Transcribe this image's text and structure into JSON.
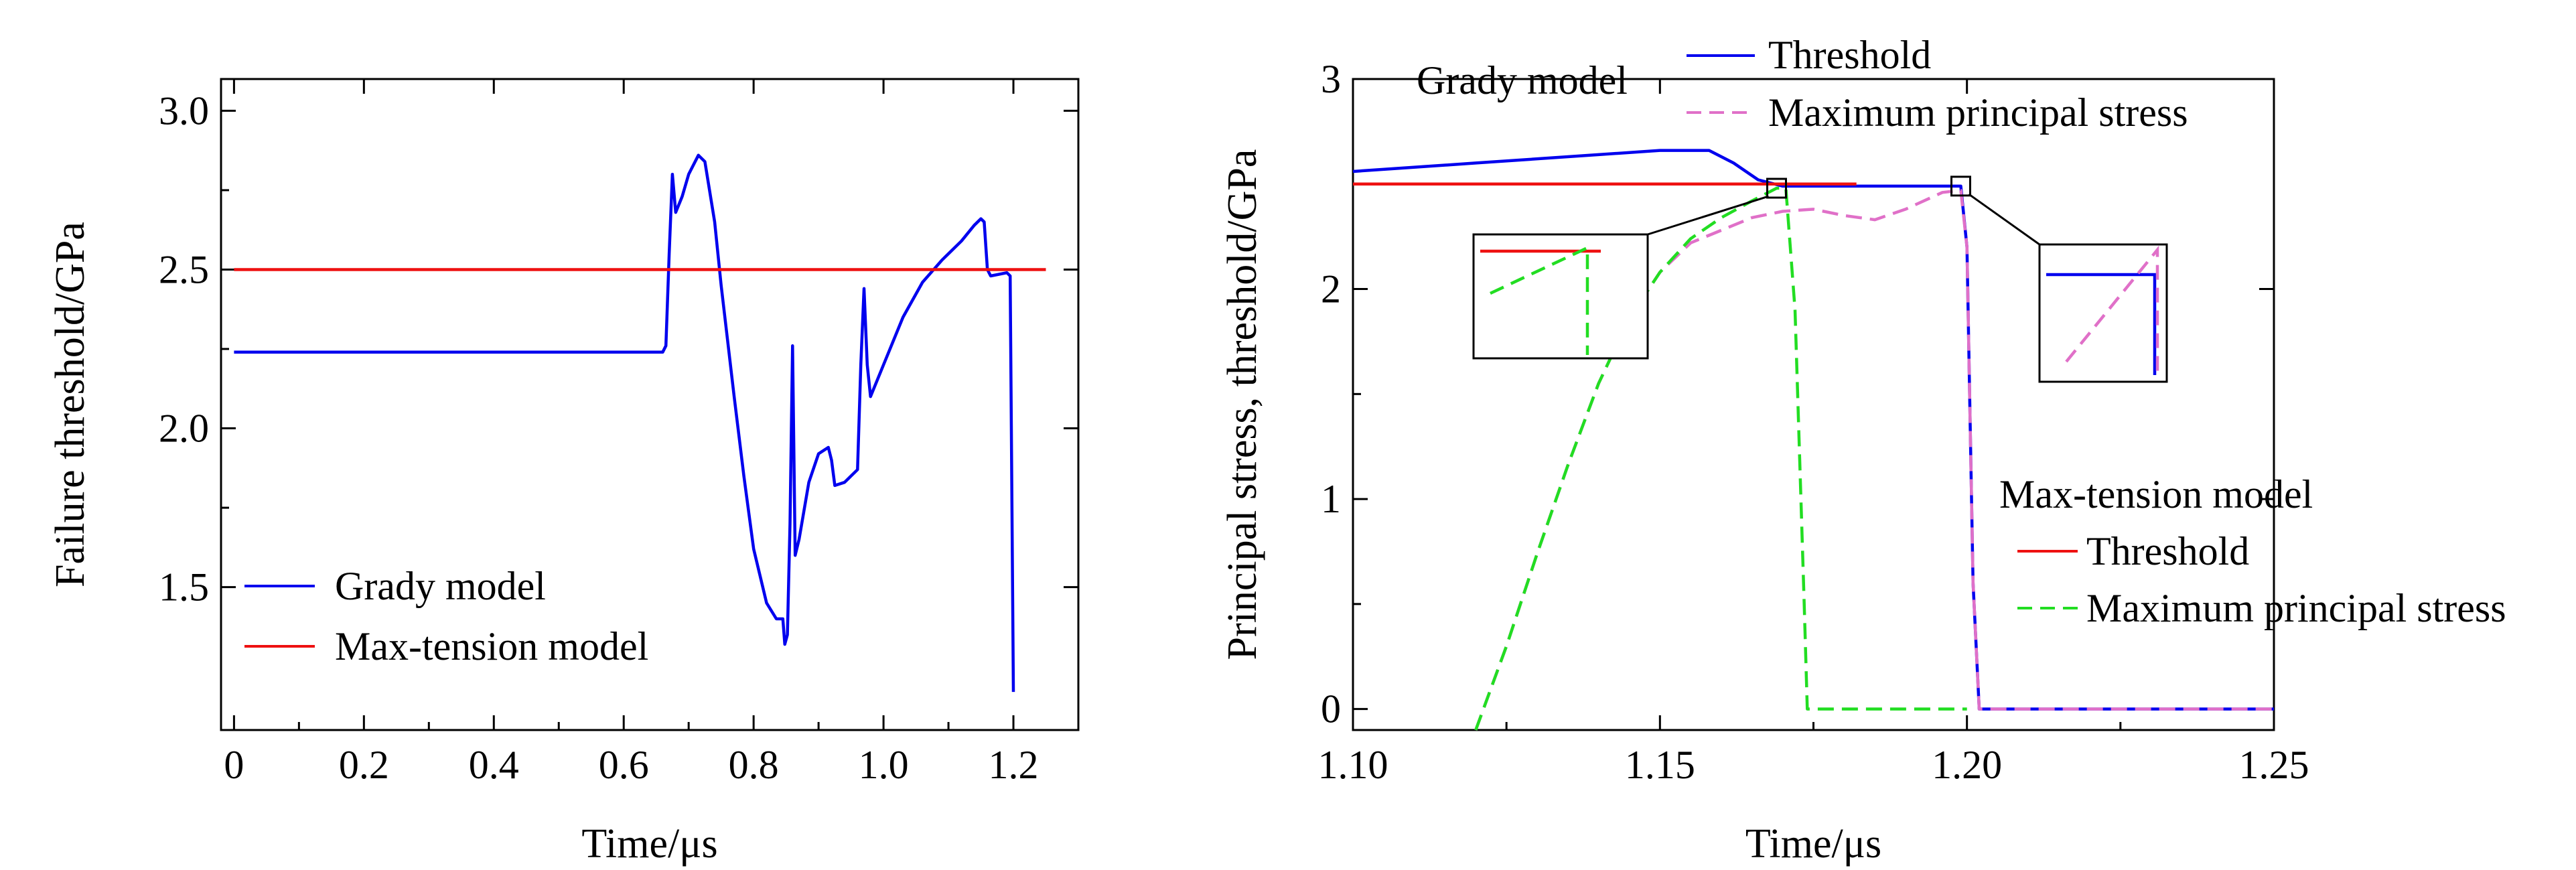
{
  "chart_data": [
    {
      "type": "line",
      "xlabel": "Time/μs",
      "ylabel": "Failure threshold/GPa",
      "xlim": [
        -0.02,
        1.3
      ],
      "ylim": [
        1.05,
        3.1
      ],
      "xticks": [
        0,
        0.2,
        0.4,
        0.6,
        0.8,
        1.0,
        1.2
      ],
      "xtick_labels": [
        "0",
        "0.2",
        "0.4",
        "0.6",
        "0.8",
        "1.0",
        "1.2"
      ],
      "yticks": [
        1.5,
        2.0,
        2.5,
        3.0
      ],
      "ytick_labels": [
        "1.5",
        "2.0",
        "2.5",
        "3.0"
      ],
      "legend_position": "bottom-left",
      "series": [
        {
          "name": "Grady model",
          "color": "#0000ee",
          "style": "solid",
          "points": [
            [
              0,
              2.24
            ],
            [
              0.66,
              2.24
            ],
            [
              0.665,
              2.26
            ],
            [
              0.67,
              2.55
            ],
            [
              0.675,
              2.8
            ],
            [
              0.68,
              2.68
            ],
            [
              0.69,
              2.73
            ],
            [
              0.7,
              2.8
            ],
            [
              0.715,
              2.86
            ],
            [
              0.725,
              2.84
            ],
            [
              0.74,
              2.65
            ],
            [
              0.75,
              2.45
            ],
            [
              0.77,
              2.1
            ],
            [
              0.785,
              1.85
            ],
            [
              0.8,
              1.62
            ],
            [
              0.82,
              1.45
            ],
            [
              0.835,
              1.4
            ],
            [
              0.845,
              1.4
            ],
            [
              0.848,
              1.32
            ],
            [
              0.852,
              1.35
            ],
            [
              0.856,
              1.7
            ],
            [
              0.86,
              2.26
            ],
            [
              0.864,
              1.6
            ],
            [
              0.87,
              1.65
            ],
            [
              0.885,
              1.83
            ],
            [
              0.9,
              1.92
            ],
            [
              0.915,
              1.94
            ],
            [
              0.92,
              1.9
            ],
            [
              0.925,
              1.82
            ],
            [
              0.94,
              1.83
            ],
            [
              0.96,
              1.87
            ],
            [
              0.965,
              2.2
            ],
            [
              0.97,
              2.44
            ],
            [
              0.975,
              2.2
            ],
            [
              0.98,
              2.1
            ],
            [
              1.0,
              2.2
            ],
            [
              1.03,
              2.35
            ],
            [
              1.06,
              2.46
            ],
            [
              1.09,
              2.53
            ],
            [
              1.12,
              2.59
            ],
            [
              1.14,
              2.64
            ],
            [
              1.15,
              2.66
            ],
            [
              1.155,
              2.65
            ],
            [
              1.16,
              2.5
            ],
            [
              1.165,
              2.48
            ],
            [
              1.19,
              2.49
            ],
            [
              1.195,
              2.48
            ],
            [
              1.2,
              1.17
            ]
          ]
        },
        {
          "name": "Max-tension model",
          "color": "#ee1111",
          "style": "solid",
          "points": [
            [
              0,
              2.5
            ],
            [
              1.25,
              2.5
            ]
          ]
        }
      ]
    },
    {
      "type": "line",
      "xlabel": "Time/μs",
      "ylabel": "Principal stress, threshold/GPa",
      "xlim": [
        1.1,
        1.25
      ],
      "ylim": [
        -0.1,
        3.0
      ],
      "xticks": [
        1.1,
        1.15,
        1.2,
        1.25
      ],
      "xtick_labels": [
        "1.10",
        "1.15",
        "1.20",
        "1.25"
      ],
      "yticks": [
        0,
        1,
        2,
        3
      ],
      "ytick_labels": [
        "0",
        "1",
        "2",
        "3"
      ],
      "legend_groups": [
        {
          "title": "Grady model",
          "position": "top",
          "entries": [
            {
              "name": "Threshold",
              "color": "#0000ee",
              "style": "solid"
            },
            {
              "name": "Maximum principal stress",
              "color": "#e070c8",
              "style": "dashed"
            }
          ]
        },
        {
          "title": "Max-tension model",
          "position": "right",
          "entries": [
            {
              "name": "Threshold",
              "color": "#ee1111",
              "style": "solid"
            },
            {
              "name": "Maximum principal stress",
              "color": "#22dd22",
              "style": "dashed"
            }
          ]
        }
      ],
      "series": [
        {
          "name": "Threshold",
          "group": "Grady model",
          "color": "#0000ee",
          "style": "solid",
          "points": [
            [
              1.1,
              2.56
            ],
            [
              1.12,
              2.6
            ],
            [
              1.14,
              2.64
            ],
            [
              1.15,
              2.66
            ],
            [
              1.158,
              2.66
            ],
            [
              1.162,
              2.6
            ],
            [
              1.166,
              2.52
            ],
            [
              1.17,
              2.49
            ],
            [
              1.19,
              2.49
            ],
            [
              1.199,
              2.49
            ],
            [
              1.2,
              2.2
            ],
            [
              1.201,
              0.6
            ],
            [
              1.202,
              0
            ],
            [
              1.25,
              0
            ]
          ]
        },
        {
          "name": "Maximum principal stress",
          "group": "Grady model",
          "color": "#e070c8",
          "style": "dashed",
          "points": [
            [
              1.12,
              -0.1
            ],
            [
              1.125,
              0.3
            ],
            [
              1.13,
              0.74
            ],
            [
              1.135,
              1.16
            ],
            [
              1.14,
              1.55
            ],
            [
              1.145,
              1.86
            ],
            [
              1.15,
              2.08
            ],
            [
              1.155,
              2.22
            ],
            [
              1.16,
              2.28
            ],
            [
              1.165,
              2.34
            ],
            [
              1.17,
              2.37
            ],
            [
              1.175,
              2.38
            ],
            [
              1.18,
              2.35
            ],
            [
              1.185,
              2.33
            ],
            [
              1.19,
              2.38
            ],
            [
              1.196,
              2.46
            ],
            [
              1.199,
              2.47
            ],
            [
              1.2,
              2.2
            ],
            [
              1.201,
              0.6
            ],
            [
              1.202,
              0
            ],
            [
              1.25,
              0
            ]
          ]
        },
        {
          "name": "Threshold",
          "group": "Max-tension model",
          "color": "#ee1111",
          "style": "solid",
          "points": [
            [
              1.1,
              2.5
            ],
            [
              1.182,
              2.5
            ]
          ]
        },
        {
          "name": "Maximum principal stress",
          "group": "Max-tension model",
          "color": "#22dd22",
          "style": "dashed",
          "points": [
            [
              1.12,
              -0.1
            ],
            [
              1.125,
              0.3
            ],
            [
              1.13,
              0.74
            ],
            [
              1.135,
              1.16
            ],
            [
              1.14,
              1.55
            ],
            [
              1.145,
              1.86
            ],
            [
              1.15,
              2.08
            ],
            [
              1.155,
              2.24
            ],
            [
              1.16,
              2.34
            ],
            [
              1.165,
              2.42
            ],
            [
              1.169,
              2.48
            ],
            [
              1.1705,
              2.48
            ],
            [
              1.172,
              1.9
            ],
            [
              1.1735,
              0.5
            ],
            [
              1.174,
              0
            ],
            [
              1.2,
              0
            ]
          ]
        }
      ],
      "zoom_markers": [
        {
          "center": [
            1.169,
            2.48
          ]
        },
        {
          "center": [
            1.199,
            2.49
          ]
        }
      ]
    }
  ]
}
